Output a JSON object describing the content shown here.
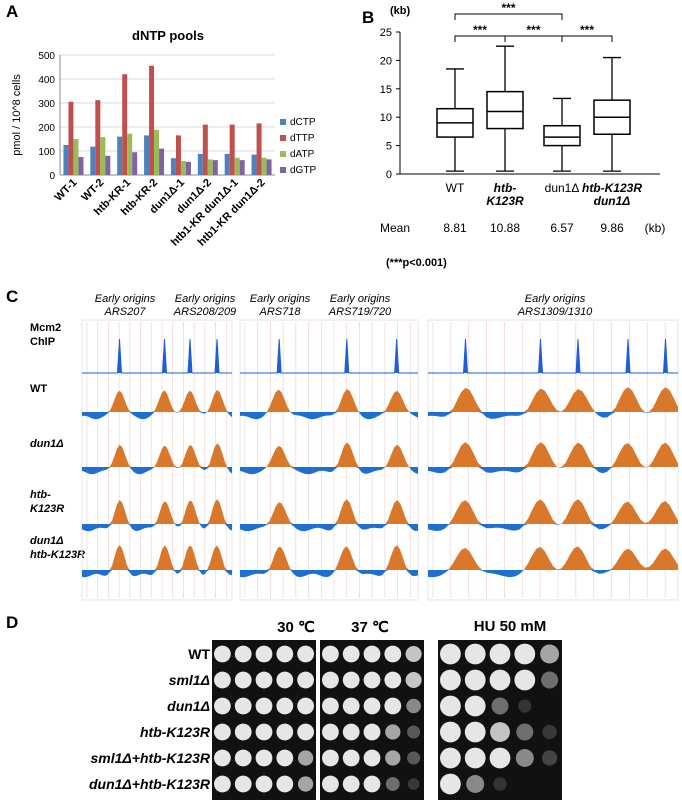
{
  "panels": [
    "A",
    "B",
    "C",
    "D"
  ],
  "panelA": {
    "chart_data": {
      "type": "bar",
      "title": "dNTP pools",
      "ylabel": "pmol / 10^8 cells",
      "xlabel": "",
      "ylim": [
        0,
        500
      ],
      "yticks": [
        "0",
        "100",
        "200",
        "300",
        "400",
        "500"
      ],
      "categories": [
        "WT-1",
        "WT-2",
        "htb-KR-1",
        "htb-KR-2",
        "dun1Δ-1",
        "dun1Δ-2",
        "htb1-KR dun1Δ-1",
        "htb1-KR dun1Δ-2"
      ],
      "series": [
        {
          "name": "dCTP",
          "color": "#4f81bd",
          "values": [
            125,
            118,
            160,
            165,
            70,
            88,
            88,
            85
          ]
        },
        {
          "name": "dTTP",
          "color": "#c0504d",
          "values": [
            305,
            312,
            420,
            455,
            165,
            210,
            210,
            215
          ]
        },
        {
          "name": "dATP",
          "color": "#9bbb59",
          "values": [
            150,
            158,
            172,
            188,
            58,
            65,
            72,
            72
          ]
        },
        {
          "name": "dGTP",
          "color": "#8064a2",
          "values": [
            75,
            80,
            95,
            110,
            55,
            62,
            62,
            65
          ]
        }
      ],
      "legend": "right"
    }
  },
  "panelB": {
    "chart_data": {
      "type": "box",
      "ylabel": "(kb)",
      "ylim": [
        0,
        25
      ],
      "yticks": [
        "0",
        "5",
        "10",
        "15",
        "20",
        "25"
      ],
      "categories": [
        "WT",
        "htb-K123R",
        "dun1Δ",
        "htb-K123R dun1Δ"
      ],
      "category_lines": [
        [
          "WT"
        ],
        [
          "htb-",
          "K123R"
        ],
        [
          "dun1Δ"
        ],
        [
          "htb-K123R",
          "dun1Δ"
        ]
      ],
      "boxes": [
        {
          "min": 0.5,
          "q1": 6.5,
          "median": 9,
          "q3": 11.5,
          "max": 18.5
        },
        {
          "min": 0.5,
          "q1": 8,
          "median": 11,
          "q3": 14.5,
          "max": 22.5
        },
        {
          "min": 0.5,
          "q1": 5,
          "median": 6.5,
          "q3": 8.5,
          "max": 13.3
        },
        {
          "min": 0.5,
          "q1": 7,
          "median": 10,
          "q3": 13,
          "max": 20.5
        }
      ],
      "significance": [
        {
          "from": 0,
          "to": 2,
          "label": "***"
        },
        {
          "from": 0,
          "to": 1,
          "label": "***"
        },
        {
          "from": 1,
          "to": 2,
          "label": "***"
        },
        {
          "from": 2,
          "to": 3,
          "label": "***"
        }
      ],
      "mean_label": "Mean",
      "means": [
        "8.81",
        "10.88",
        "6.57",
        "9.86"
      ],
      "mean_unit": "(kb)",
      "pvalue_note": "(***p<0.001)"
    }
  },
  "panelC": {
    "groups": [
      {
        "titles": [
          "Early  origins",
          "ARS207"
        ],
        "titles2": [
          "Early origins",
          "ARS208/209"
        ]
      },
      {
        "titles": [
          "Early  origins",
          "ARS718"
        ],
        "titles2": [
          "Early origins",
          "ARS719/720"
        ]
      },
      {
        "titles": [
          "Early  origins",
          "ARS1309/1310"
        ],
        "titles2": [
          "",
          ""
        ]
      }
    ],
    "tracks": [
      "Mcm2 ChIP",
      "WT",
      "dun1Δ",
      "htb-K123R",
      "dun1Δ htb-K123R"
    ],
    "track_labels": {
      "mcm2": [
        "Mcm2",
        "ChIP"
      ],
      "wt": "WT",
      "dun1": "dun1Δ",
      "htb": [
        "htb-",
        "K123R"
      ],
      "double": [
        "dun1Δ",
        "htb-K123R"
      ]
    },
    "track_colors": {
      "chip": "#1f5fd6",
      "positive": "#d9772a",
      "negative": "#1f6fd0"
    }
  },
  "panelD": {
    "conditions": [
      "30 ℃",
      "37 ℃",
      "HU 50 mM"
    ],
    "strains": [
      "WT",
      "sml1Δ",
      "dun1Δ",
      "htb-K123R",
      "sml1Δ+htb-K123R",
      "dun1Δ+htb-K123R"
    ]
  }
}
